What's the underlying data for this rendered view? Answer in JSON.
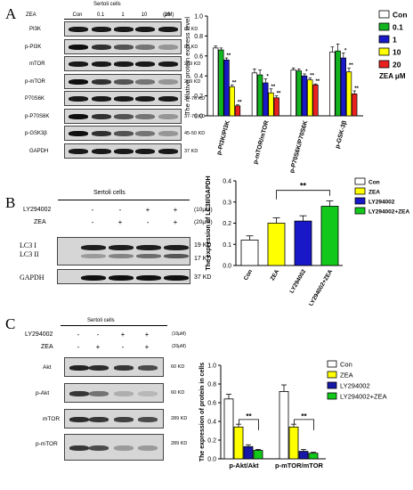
{
  "panel_a": {
    "letter": "A",
    "blot": {
      "title": "Sertoli cells",
      "zea_label": "ZEA",
      "unit": "(μM)",
      "lanes": [
        "Con",
        "0.1",
        "1",
        "10",
        "20"
      ],
      "rows": [
        {
          "label": "PI3K",
          "kd": "85 KD"
        },
        {
          "label": "p-PI3K",
          "kd": "85 KD"
        },
        {
          "label": "mTOR",
          "kd": "289 KD"
        },
        {
          "label": "p-mTOR",
          "kd": "289 KD"
        },
        {
          "label": "P70S6K",
          "kd": "37-76 KD"
        },
        {
          "label": "p-P70S6K",
          "kd": "37-76 KD"
        },
        {
          "label": "p-GSK3β",
          "kd": "45-50 KD"
        },
        {
          "label": "GAPDH",
          "kd": "37 KD"
        }
      ]
    },
    "legend_unit": "ZEA μM"
  },
  "panel_b": {
    "letter": "B",
    "blot": {
      "title": "Sertoli cells",
      "treatments": [
        {
          "label": "LY294002",
          "signs": [
            "-",
            "-",
            "+",
            "+"
          ],
          "dose": "(10μM)"
        },
        {
          "label": "ZEA",
          "signs": [
            "-",
            "+",
            "-",
            "+"
          ],
          "dose": "(20μM)"
        }
      ],
      "rows": [
        {
          "labels": [
            "LC3 I",
            "LC3 II"
          ],
          "kd": [
            "19 KD",
            "17 KD"
          ]
        },
        {
          "labels": [
            "GAPDH"
          ],
          "kd": [
            "37 KD"
          ]
        }
      ]
    }
  },
  "panel_c": {
    "letter": "C",
    "blot": {
      "title": "Sertoli cells",
      "treatments": [
        {
          "label": "LY294002",
          "signs": [
            "-",
            "-",
            "+",
            "+"
          ],
          "dose": "(10μM)"
        },
        {
          "label": "ZEA",
          "signs": [
            "-",
            "+",
            "-",
            "+"
          ],
          "dose": "(20μM)"
        }
      ],
      "rows": [
        {
          "label": "Akt",
          "kd": "60 KD"
        },
        {
          "label": "p-Akt",
          "kd": "60 KD"
        },
        {
          "label": "mTOR",
          "kd": "289 KD"
        },
        {
          "label": "p-mTOR",
          "kd": "289 KD"
        }
      ]
    }
  },
  "chart_data": [
    {
      "type": "bar",
      "ylabel": "The relative protein express level",
      "ylim": [
        0,
        1.0
      ],
      "yticks": [
        "0.0",
        "0.2",
        "0.4",
        "0.6",
        "0.8",
        "1.0"
      ],
      "categories": [
        "p-PI3K/PI3K",
        "p-mTOR/mTOR",
        "p-P70S6K/P70S6K",
        "p-GSK-3β"
      ],
      "series": [
        {
          "name": "Con",
          "color": "#ffffff",
          "values": [
            0.68,
            0.43,
            0.46,
            0.64
          ],
          "err": [
            0.02,
            0.04,
            0.02,
            0.05
          ],
          "sig": [
            "",
            "",
            "",
            ""
          ]
        },
        {
          "name": "0.1",
          "color": "#12b51f",
          "values": [
            0.66,
            0.41,
            0.45,
            0.65
          ],
          "err": [
            0.02,
            0.05,
            0.02,
            0.07
          ],
          "sig": [
            "",
            "",
            "",
            ""
          ]
        },
        {
          "name": "1",
          "color": "#1818c8",
          "values": [
            0.56,
            0.33,
            0.4,
            0.58
          ],
          "err": [
            0.02,
            0.04,
            0.02,
            0.05
          ],
          "sig": [
            "**",
            "*",
            "*",
            "*"
          ]
        },
        {
          "name": "10",
          "color": "#ffff00",
          "values": [
            0.29,
            0.23,
            0.36,
            0.44
          ],
          "err": [
            0.02,
            0.04,
            0.02,
            0.04
          ],
          "sig": [
            "**",
            "**",
            "**",
            "**"
          ]
        },
        {
          "name": "20",
          "color": "#e8201e",
          "values": [
            0.1,
            0.18,
            0.31,
            0.22
          ],
          "err": [
            0.01,
            0.02,
            0.01,
            0.03
          ],
          "sig": [
            "**",
            "**",
            "**",
            "**"
          ]
        }
      ],
      "legend_placement": "right"
    },
    {
      "type": "bar",
      "ylabel": "The expression of LC3II/GAPDH",
      "ylim": [
        0,
        0.4
      ],
      "yticks": [
        "0.0",
        "0.1",
        "0.2",
        "0.3",
        "0.4"
      ],
      "categories": [
        "Con",
        "ZEA",
        "LY294002",
        "LY294002+ZEA"
      ],
      "values": [
        0.12,
        0.2,
        0.21,
        0.28
      ],
      "err": [
        0.02,
        0.025,
        0.025,
        0.025
      ],
      "colors": [
        "#ffffff",
        "#ffff00",
        "#1818c8",
        "#12c81a"
      ],
      "annotation": "**",
      "legend": [
        "Con",
        "ZEA",
        "LY294002",
        "LY294002+ZEA"
      ],
      "legend_placement": "right"
    },
    {
      "type": "bar",
      "ylabel": "The expression of protein in cells",
      "ylim": [
        0,
        1.0
      ],
      "yticks": [
        "0.0",
        "0.2",
        "0.4",
        "0.6",
        "0.8",
        "1.0"
      ],
      "categories": [
        "p-Akt/Akt",
        "p-mTOR/mTOR"
      ],
      "series": [
        {
          "name": "Con",
          "color": "#ffffff",
          "values": [
            0.64,
            0.72
          ],
          "err": [
            0.05,
            0.07
          ]
        },
        {
          "name": "ZEA",
          "color": "#ffff00",
          "values": [
            0.34,
            0.34
          ],
          "err": [
            0.03,
            0.03
          ]
        },
        {
          "name": "LY294002",
          "color": "#1818a8",
          "values": [
            0.13,
            0.08
          ],
          "err": [
            0.02,
            0.02
          ]
        },
        {
          "name": "LY294002+ZEA",
          "color": "#12c81a",
          "values": [
            0.09,
            0.06
          ],
          "err": [
            0.01,
            0.01
          ]
        }
      ],
      "annotations": [
        "**",
        "**"
      ],
      "legend_placement": "top-right"
    }
  ]
}
